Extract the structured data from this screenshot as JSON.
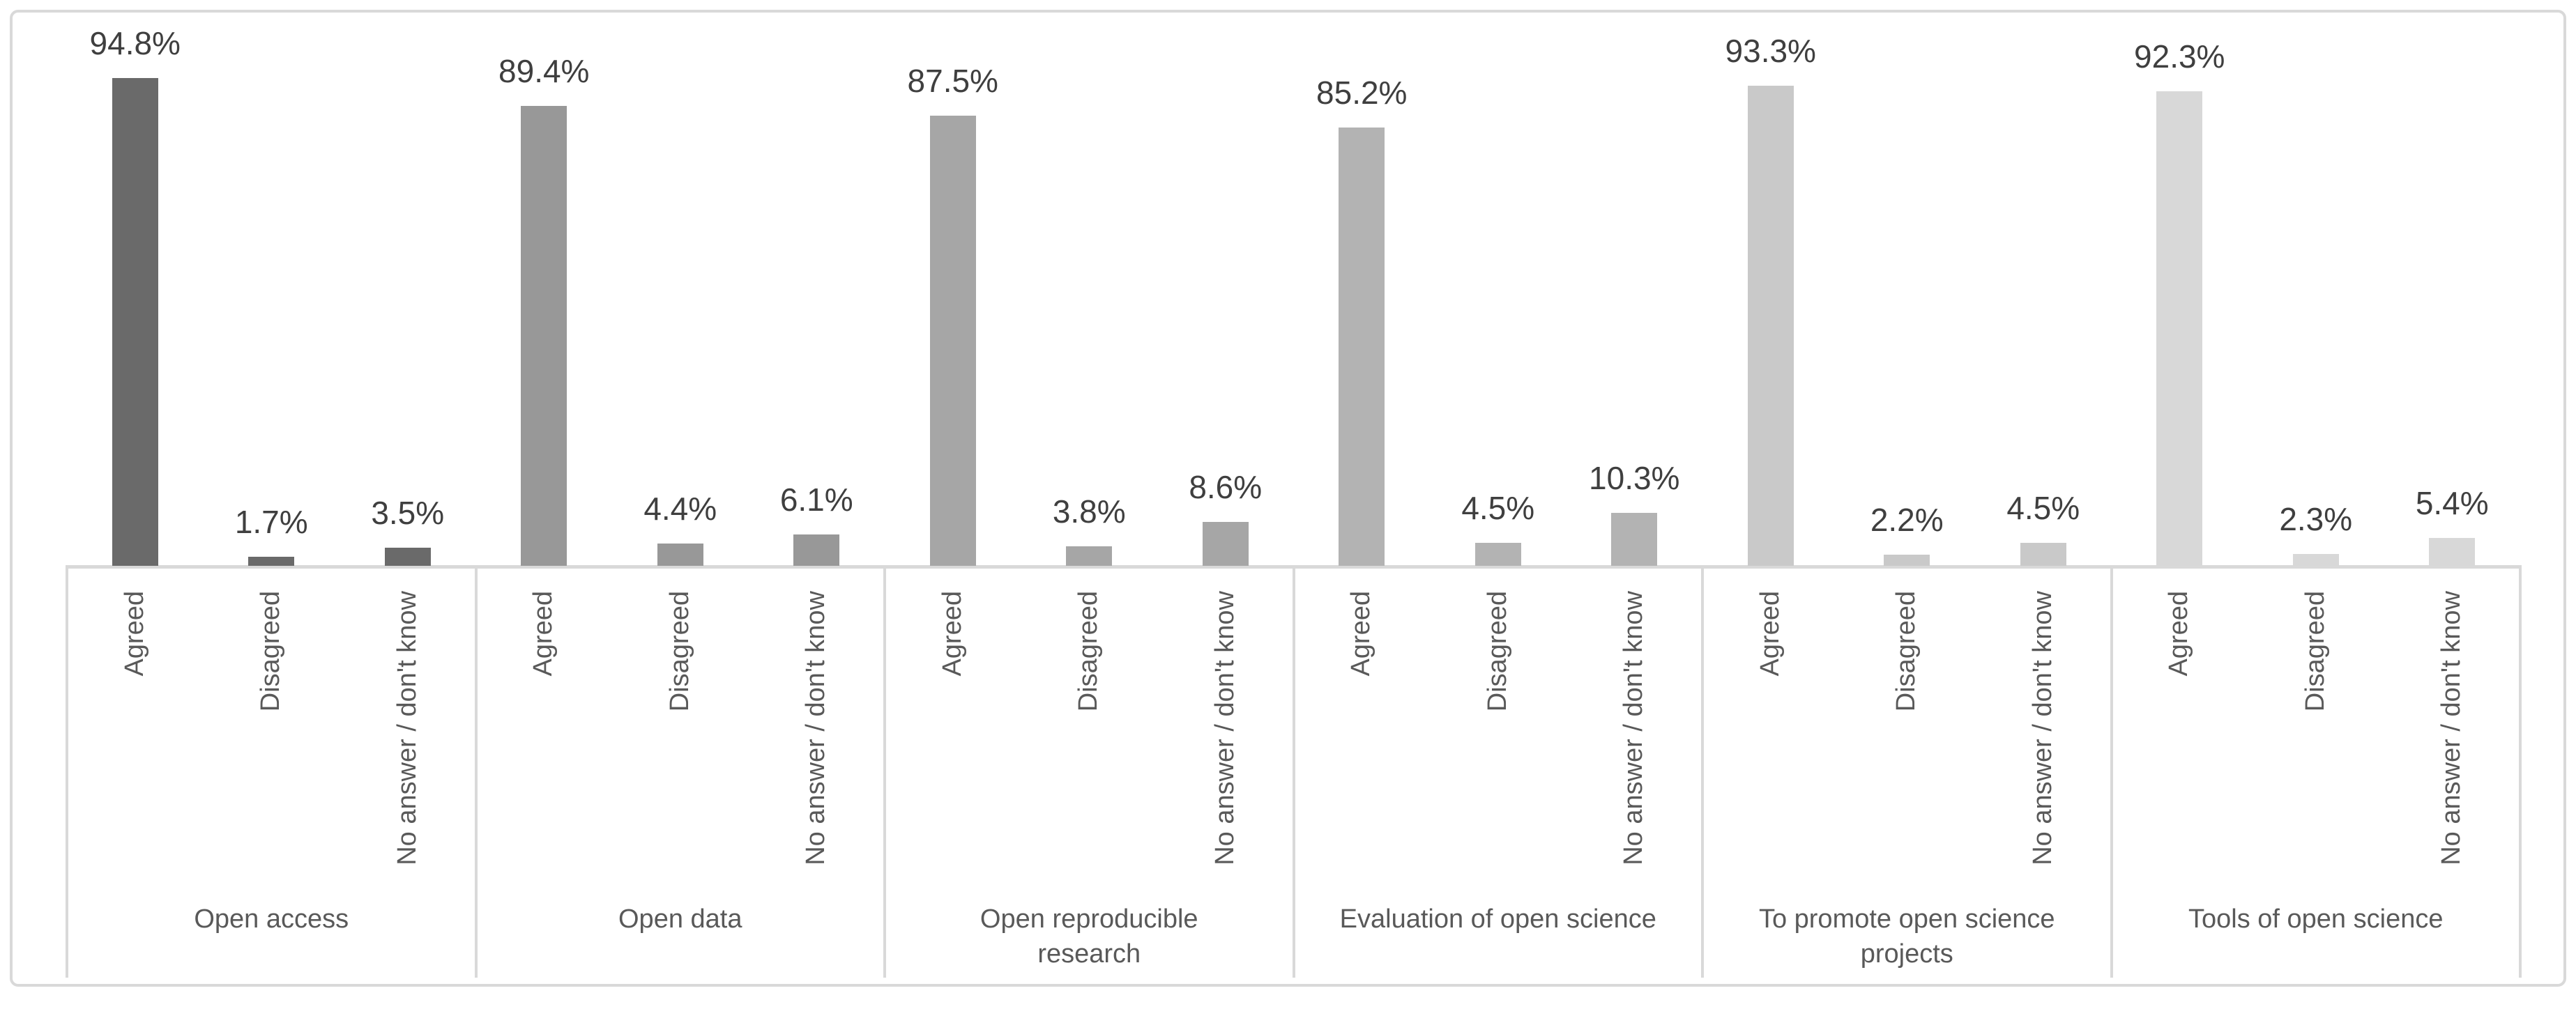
{
  "chart_data": {
    "type": "bar",
    "title": "",
    "xlabel": "",
    "ylabel": "",
    "unit": "%",
    "axis": {
      "ymin": 0,
      "ymax": 100,
      "gridlines": false,
      "y_axis_visible": false,
      "data_labels": true
    },
    "legend": {
      "visible": false
    },
    "response_options": [
      "Agreed",
      "Disagreed",
      "No answer / don't know"
    ],
    "groups": [
      {
        "label": "Open access",
        "values": [
          94.8,
          1.7,
          3.5
        ],
        "value_labels": [
          "94.8%",
          "1.7%",
          "3.5%"
        ],
        "bar_color": "#6a6a6a"
      },
      {
        "label": "Open data",
        "values": [
          89.4,
          4.4,
          6.1
        ],
        "value_labels": [
          "89.4%",
          "4.4%",
          "6.1%"
        ],
        "bar_color": "#989898"
      },
      {
        "label": "Open reproducible\nresearch",
        "values": [
          87.5,
          3.8,
          8.6
        ],
        "value_labels": [
          "87.5%",
          "3.8%",
          "8.6%"
        ],
        "bar_color": "#a6a6a6"
      },
      {
        "label": "Evaluation of open science",
        "values": [
          85.2,
          4.5,
          10.3
        ],
        "value_labels": [
          "85.2%",
          "4.5%",
          "10.3%"
        ],
        "bar_color": "#b3b3b3"
      },
      {
        "label": "To promote open science\nprojects",
        "values": [
          93.3,
          2.2,
          4.5
        ],
        "value_labels": [
          "93.3%",
          "2.2%",
          "4.5%"
        ],
        "bar_color": "#c9c9c9"
      },
      {
        "label": "Tools of open science",
        "values": [
          92.3,
          2.3,
          5.4
        ],
        "value_labels": [
          "92.3%",
          "2.3%",
          "5.4%"
        ],
        "bar_color": "#d8d8d8"
      }
    ],
    "colors": {
      "frame_border": "#d9d9d9",
      "axis_line": "#d9d9d9",
      "value_label_text": "#3f3f3f",
      "axis_label_text": "#595959",
      "background": "#ffffff"
    }
  }
}
